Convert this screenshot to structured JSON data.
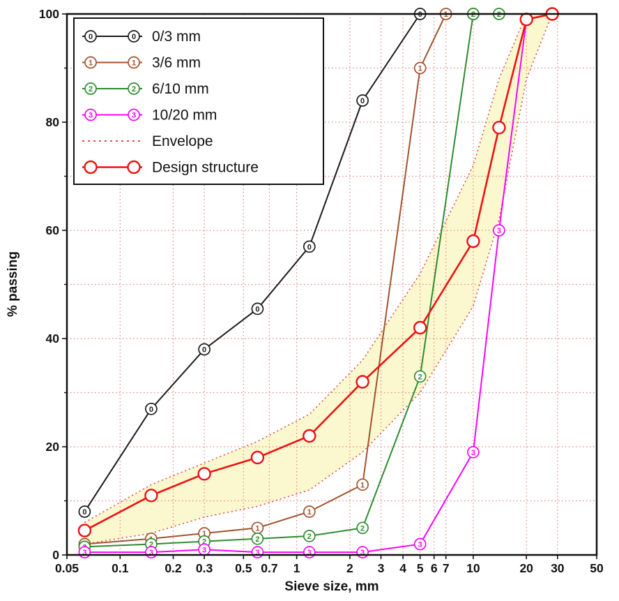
{
  "chart_data": {
    "type": "line",
    "xlabel": "Sieve size, mm",
    "ylabel": "% passing",
    "x_scale": "log",
    "xlim": [
      0.05,
      50
    ],
    "ylim": [
      0,
      100
    ],
    "x_ticks": [
      0.05,
      0.1,
      0.2,
      0.3,
      0.5,
      0.7,
      1,
      2,
      3,
      4,
      5,
      6,
      7,
      10,
      20,
      30,
      50
    ],
    "x_tick_labels": [
      "0.05",
      "0.1",
      "0.2",
      "0.3",
      "0.5",
      "0.7",
      "1",
      "2",
      "3",
      "4",
      "5",
      "6",
      "7",
      "10",
      "20",
      "30",
      "50"
    ],
    "x_gridlines": [
      0.1,
      0.2,
      0.3,
      0.5,
      0.7,
      1,
      2,
      3,
      4,
      5,
      6,
      7,
      10,
      20,
      30
    ],
    "y_major_ticks": [
      0,
      20,
      40,
      60,
      80,
      100
    ],
    "y_minor_ticks": [
      10,
      30,
      50,
      70,
      90
    ],
    "y_gridlines": [
      10,
      20,
      30,
      40,
      50,
      60,
      70,
      80,
      90
    ],
    "grid_color": "#e57f7f",
    "axis_color": "#111111",
    "legend_position": "top-left",
    "series": [
      {
        "name": "0/3 mm",
        "marker_digit": "0",
        "color": "#1a1a1a",
        "points": [
          [
            0.063,
            8
          ],
          [
            0.15,
            27
          ],
          [
            0.3,
            38
          ],
          [
            0.6,
            45.5
          ],
          [
            1.18,
            57
          ],
          [
            2.36,
            84
          ],
          [
            5,
            100
          ],
          [
            10,
            100
          ]
        ]
      },
      {
        "name": "3/6 mm",
        "marker_digit": "1",
        "color": "#a0522d",
        "points": [
          [
            0.063,
            2
          ],
          [
            0.15,
            3
          ],
          [
            0.3,
            4
          ],
          [
            0.6,
            5
          ],
          [
            1.18,
            8
          ],
          [
            2.36,
            13
          ],
          [
            5,
            90
          ],
          [
            7,
            100
          ],
          [
            10,
            100
          ]
        ]
      },
      {
        "name": "6/10 mm",
        "marker_digit": "2",
        "color": "#2e8b2e",
        "points": [
          [
            0.063,
            1.5
          ],
          [
            0.15,
            2
          ],
          [
            0.3,
            2.5
          ],
          [
            0.6,
            3
          ],
          [
            1.18,
            3.5
          ],
          [
            2.36,
            5
          ],
          [
            5,
            33
          ],
          [
            10,
            100
          ],
          [
            14,
            100
          ]
        ]
      },
      {
        "name": "10/20 mm",
        "marker_digit": "3",
        "color": "#ff00ff",
        "points": [
          [
            0.063,
            0.5
          ],
          [
            0.15,
            0.5
          ],
          [
            0.3,
            1
          ],
          [
            0.6,
            0.5
          ],
          [
            1.18,
            0.5
          ],
          [
            2.36,
            0.5
          ],
          [
            5,
            2
          ],
          [
            10,
            19
          ],
          [
            14,
            60
          ],
          [
            20,
            99
          ],
          [
            28,
            100
          ]
        ]
      }
    ],
    "envelope": {
      "name": "Envelope",
      "color": "#e04848",
      "fill": "#fbf8cf",
      "upper": [
        [
          0.063,
          6
        ],
        [
          0.15,
          13
        ],
        [
          0.3,
          17
        ],
        [
          0.6,
          21
        ],
        [
          1.18,
          26
        ],
        [
          2.36,
          36
        ],
        [
          5,
          52
        ],
        [
          10,
          72
        ],
        [
          14,
          88
        ],
        [
          20,
          100
        ]
      ],
      "lower": [
        [
          0.063,
          2
        ],
        [
          0.15,
          4
        ],
        [
          0.3,
          7
        ],
        [
          0.6,
          9
        ],
        [
          1.18,
          12
        ],
        [
          2.36,
          19
        ],
        [
          5,
          30
        ],
        [
          10,
          46
        ],
        [
          14,
          62
        ],
        [
          20,
          88
        ],
        [
          28,
          100
        ]
      ]
    },
    "design": {
      "name": "Design structure",
      "color": "#ee1111",
      "points": [
        [
          0.063,
          4.5
        ],
        [
          0.15,
          11
        ],
        [
          0.3,
          15
        ],
        [
          0.6,
          18
        ],
        [
          1.18,
          22
        ],
        [
          2.36,
          32
        ],
        [
          5,
          42
        ],
        [
          10,
          58
        ],
        [
          14,
          79
        ],
        [
          20,
          99
        ],
        [
          28,
          100
        ]
      ]
    }
  }
}
